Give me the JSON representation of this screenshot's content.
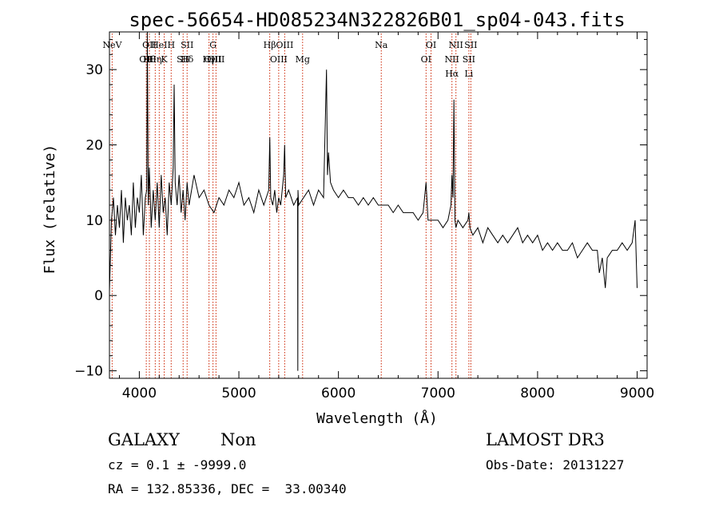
{
  "chart_data": {
    "type": "line",
    "title": "spec-56654-HD085234N322826B01_sp04-043.fits",
    "xlabel": "Wavelength (Å)",
    "ylabel": "Flux (relative)",
    "xlim": [
      3700,
      9100
    ],
    "ylim": [
      -11,
      35
    ],
    "x_ticks": [
      4000,
      5000,
      6000,
      7000,
      8000,
      9000
    ],
    "x_tick_labels": [
      "4000",
      "5000",
      "6000",
      "7000",
      "8000",
      "9000"
    ],
    "y_ticks": [
      -10,
      0,
      10,
      20,
      30
    ],
    "y_tick_labels": [
      "−10",
      "0",
      "10",
      "20",
      "30"
    ],
    "grid": false,
    "series": [
      {
        "x": [
          3700,
          3720,
          3740,
          3760,
          3780,
          3800,
          3820,
          3840,
          3860,
          3880,
          3900,
          3920,
          3940,
          3960,
          3980,
          4000,
          4020,
          4040,
          4060,
          4075,
          4080,
          4090,
          4100,
          4120,
          4140,
          4160,
          4180,
          4200,
          4220,
          4240,
          4260,
          4280,
          4300,
          4320,
          4340,
          4350,
          4360,
          4380,
          4400,
          4420,
          4440,
          4460,
          4480,
          4500,
          4550,
          4600,
          4650,
          4700,
          4750,
          4800,
          4850,
          4900,
          4950,
          5000,
          5050,
          5100,
          5150,
          5200,
          5250,
          5300,
          5310,
          5320,
          5340,
          5360,
          5380,
          5400,
          5420,
          5450,
          5460,
          5470,
          5500,
          5550,
          5590,
          5592,
          5594,
          5600,
          5650,
          5700,
          5750,
          5800,
          5850,
          5880,
          5890,
          5900,
          5920,
          5950,
          6000,
          6050,
          6100,
          6150,
          6200,
          6250,
          6300,
          6350,
          6400,
          6450,
          6500,
          6550,
          6600,
          6650,
          6700,
          6750,
          6800,
          6850,
          6880,
          6900,
          6950,
          7000,
          7050,
          7100,
          7130,
          7140,
          7150,
          7160,
          7170,
          7180,
          7200,
          7250,
          7300,
          7310,
          7320,
          7350,
          7400,
          7450,
          7500,
          7550,
          7600,
          7650,
          7700,
          7750,
          7800,
          7850,
          7900,
          7950,
          8000,
          8050,
          8100,
          8150,
          8200,
          8250,
          8300,
          8350,
          8400,
          8450,
          8500,
          8550,
          8600,
          8620,
          8650,
          8680,
          8700,
          8750,
          8800,
          8850,
          8900,
          8950,
          8980,
          9000
        ],
        "y": [
          0.5,
          10,
          13,
          8,
          12,
          9,
          14,
          7,
          13,
          10,
          12,
          8,
          15,
          9,
          13,
          11,
          16,
          8,
          13,
          14,
          35,
          12,
          17,
          9,
          14,
          10,
          15,
          9,
          16,
          11,
          13,
          8,
          15,
          12,
          17,
          28,
          15,
          12,
          16,
          11,
          14,
          10,
          15,
          12,
          16,
          13,
          14,
          12,
          11,
          13,
          12,
          14,
          13,
          15,
          12,
          13,
          11,
          14,
          12,
          14,
          21,
          13,
          12,
          14,
          11,
          13,
          12,
          16,
          20,
          13,
          14,
          12,
          13,
          -10,
          14,
          12,
          13,
          14,
          12,
          14,
          13,
          30,
          16,
          19,
          15,
          14,
          13,
          14,
          13,
          13,
          12,
          13,
          12,
          13,
          12,
          12,
          12,
          11,
          12,
          11,
          11,
          11,
          10,
          11,
          15,
          10,
          10,
          10,
          9,
          10,
          12,
          16,
          13,
          26,
          10,
          9,
          10,
          9,
          10,
          11,
          9,
          8,
          9,
          7,
          9,
          8,
          7,
          8,
          7,
          8,
          9,
          7,
          8,
          7,
          8,
          6,
          7,
          6,
          7,
          6,
          6,
          7,
          5,
          6,
          7,
          6,
          6,
          3,
          5,
          1,
          5,
          6,
          6,
          7,
          6,
          7,
          10,
          1
        ]
      }
    ],
    "lines": [
      {
        "x": 3727,
        "labels": [
          "NeV"
        ]
      },
      {
        "x": 4070,
        "labels": [
          "OII"
        ]
      },
      {
        "x": 4101,
        "labels": [
          "OII",
          "Hθ"
        ]
      },
      {
        "x": 4160,
        "labels": [
          "Hη"
        ]
      },
      {
        "x": 4200,
        "labels": [
          "HeI"
        ]
      },
      {
        "x": 4250,
        "labels": [
          "K"
        ]
      },
      {
        "x": 4320,
        "labels": [
          "H"
        ]
      },
      {
        "x": 4440,
        "labels": [
          "SII"
        ]
      },
      {
        "x": 4480,
        "labels": [
          "SII",
          "Hδ"
        ]
      },
      {
        "x": 4700,
        "labels": [
          "Hγ"
        ]
      },
      {
        "x": 4740,
        "labels": [
          "G",
          "OIII"
        ]
      },
      {
        "x": 4770,
        "labels": [
          "OIII"
        ]
      },
      {
        "x": 5310,
        "labels": [
          "Hβ"
        ]
      },
      {
        "x": 5400,
        "labels": [
          "OIII"
        ]
      },
      {
        "x": 5460,
        "labels": [
          "OIII"
        ]
      },
      {
        "x": 5640,
        "labels": [
          "Mg"
        ]
      },
      {
        "x": 6430,
        "labels": [
          "Na"
        ]
      },
      {
        "x": 6880,
        "labels": [
          "OI"
        ]
      },
      {
        "x": 6930,
        "labels": [
          "OI"
        ]
      },
      {
        "x": 7140,
        "labels": [
          "NII",
          "Hα"
        ]
      },
      {
        "x": 7180,
        "labels": [
          "NII"
        ]
      },
      {
        "x": 7310,
        "labels": [
          "SII",
          "Li"
        ]
      },
      {
        "x": 7330,
        "labels": [
          "SII"
        ]
      }
    ],
    "line_color": "#000000",
    "marker_color": "#cc2200"
  },
  "info": {
    "class_label": "GALAXY",
    "subclass_label": "Non",
    "survey_label": "LAMOST DR3",
    "cz_text": "cz = 0.1 ± -9999.0",
    "obsdate_text": "Obs-Date: 20131227",
    "radec_text": "RA = 132.85336, DEC =  33.00340"
  }
}
